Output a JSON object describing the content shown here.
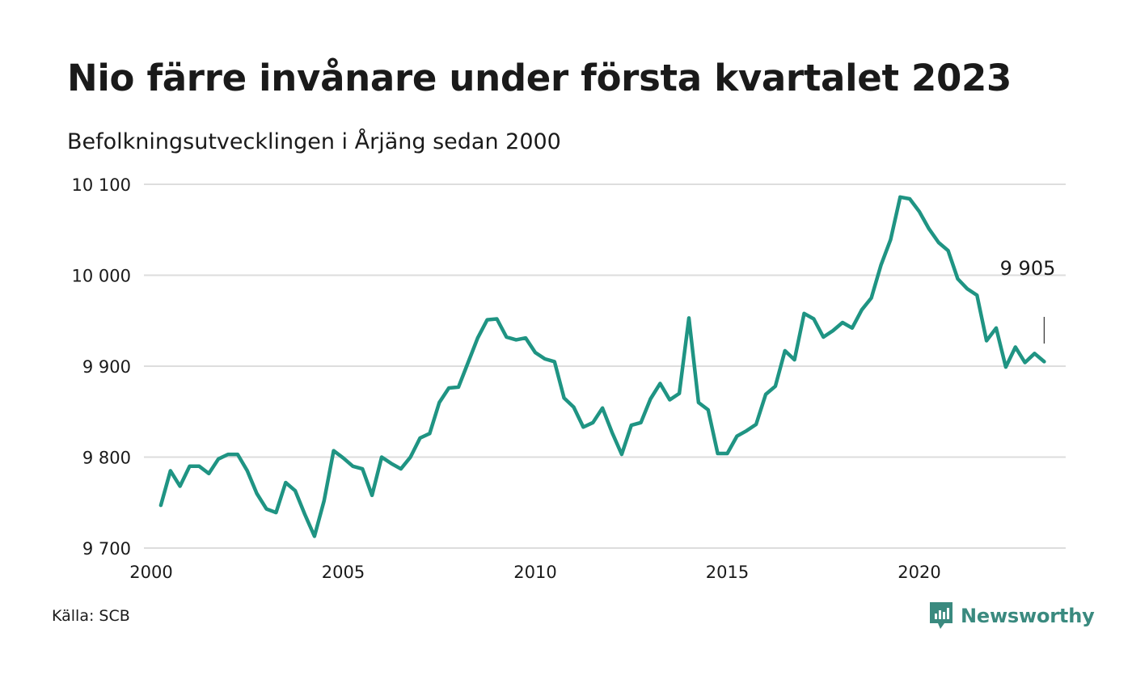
{
  "header": {
    "title": "Nio färre invånare under första kvartalet 2023",
    "subtitle": "Befolkningsutvecklingen i Årjäng sedan 2000"
  },
  "footer": {
    "source": "Källa: SCB",
    "brand": "Newsworthy"
  },
  "colors": {
    "line": "#1f9483",
    "grid": "#dddddd",
    "text": "#1a1a1a",
    "brand": "#3a8a7f"
  },
  "chart_data": {
    "type": "line",
    "x_unit": "year (quarterly points)",
    "y_ticks": [
      9700,
      9800,
      9900,
      10000,
      10100
    ],
    "y_tick_labels": [
      "9 700",
      "9 800",
      "9 900",
      "10 000",
      "10 100"
    ],
    "x_ticks": [
      2000,
      2005,
      2010,
      2015,
      2020
    ],
    "x_tick_labels": [
      "2000",
      "2005",
      "2010",
      "2015",
      "2020"
    ],
    "ylim": [
      9700,
      10100
    ],
    "xlim": [
      2000,
      2023.75
    ],
    "grid": "horizontal",
    "annotation": {
      "text": "9 905",
      "x": 2023.25,
      "y": 9905
    },
    "series": [
      {
        "x": [
          2000.25,
          2000.5,
          2000.75,
          2001.0,
          2001.25,
          2001.5,
          2001.75,
          2002.0,
          2002.25,
          2002.5,
          2002.75,
          2003.0,
          2003.25,
          2003.5,
          2003.75,
          2004.0,
          2004.25,
          2004.5,
          2004.75,
          2005.0,
          2005.25,
          2005.5,
          2005.75,
          2006.0,
          2006.25,
          2006.5,
          2006.75,
          2007.0,
          2007.25,
          2007.5,
          2007.75,
          2008.0,
          2008.25,
          2008.5,
          2008.75,
          2009.0,
          2009.25,
          2009.5,
          2009.75,
          2010.0,
          2010.25,
          2010.5,
          2010.75,
          2011.0,
          2011.25,
          2011.5,
          2011.75,
          2012.0,
          2012.25,
          2012.5,
          2012.75,
          2013.0,
          2013.25,
          2013.5,
          2013.75,
          2014.0,
          2014.25,
          2014.5,
          2014.75,
          2015.0,
          2015.25,
          2015.5,
          2015.75,
          2016.0,
          2016.25,
          2016.5,
          2016.75,
          2017.0,
          2017.25,
          2017.5,
          2017.75,
          2018.0,
          2018.25,
          2018.5,
          2018.75,
          2019.0,
          2019.25,
          2019.5,
          2019.75,
          2020.0,
          2020.25,
          2020.5,
          2020.75,
          2021.0,
          2021.25,
          2021.5,
          2021.75,
          2022.0,
          2022.25,
          2022.5,
          2022.75,
          2023.0,
          2023.25
        ],
        "values": [
          9747,
          9785,
          9768,
          9790,
          9790,
          9782,
          9798,
          9803,
          9803,
          9785,
          9760,
          9743,
          9739,
          9772,
          9763,
          9737,
          9713,
          9752,
          9807,
          9799,
          9790,
          9787,
          9758,
          9800,
          9793,
          9787,
          9800,
          9821,
          9826,
          9860,
          9876,
          9877,
          9904,
          9931,
          9951,
          9952,
          9932,
          9929,
          9931,
          9915,
          9908,
          9905,
          9865,
          9855,
          9833,
          9838,
          9854,
          9827,
          9803,
          9835,
          9838,
          9864,
          9881,
          9863,
          9870,
          9953,
          9860,
          9852,
          9804,
          9804,
          9823,
          9829,
          9836,
          9869,
          9878,
          9917,
          9907,
          9958,
          9952,
          9932,
          9939,
          9948,
          9942,
          9962,
          9975,
          10011,
          10039,
          10086,
          10084,
          10070,
          10051,
          10036,
          10027,
          9996,
          9985,
          9978,
          9928,
          9942,
          9899,
          9921,
          9904,
          9914,
          9905
        ]
      }
    ]
  }
}
